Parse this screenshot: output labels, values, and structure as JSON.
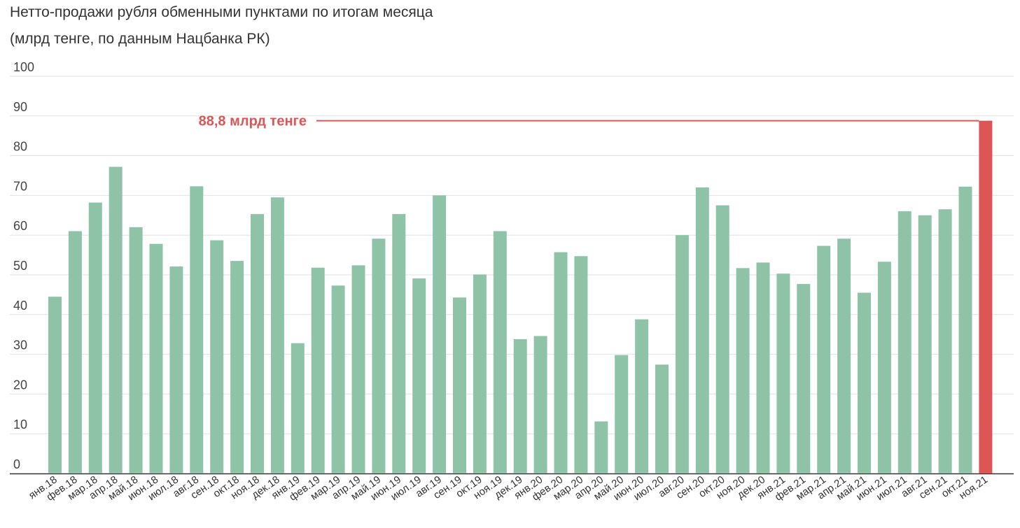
{
  "chart_data": {
    "type": "bar",
    "title_line1": "Нетто-продажи рубля обменными пунктами по итогам месяца",
    "title_line2": "(млрд тенге, по данным Нацбанка РК)",
    "categories": [
      "янв.18",
      "фев.18",
      "мар.18",
      "апр.18",
      "май.18",
      "июн.18",
      "июл.18",
      "авг.18",
      "сен.18",
      "окт.18",
      "ноя.18",
      "дек.18",
      "янв.19",
      "фев.19",
      "мар.19",
      "апр.19",
      "май.19",
      "июн.19",
      "июл.19",
      "авг.19",
      "сен.19",
      "окт.19",
      "ноя.19",
      "дек.19",
      "янв.20",
      "фев.20",
      "мар.20",
      "апр.20",
      "май.20",
      "июн.20",
      "июл.20",
      "авг.20",
      "сен.20",
      "окт.20",
      "ноя.20",
      "дек.20",
      "янв.21",
      "фев.21",
      "мар.21",
      "апр.21",
      "май.21",
      "июн.21",
      "июл.21",
      "авг.21",
      "сен.21",
      "окт.21",
      "ноя.21"
    ],
    "values": [
      44.5,
      61,
      68.2,
      77.2,
      62,
      57.8,
      52.1,
      72.3,
      58.7,
      53.5,
      65.3,
      69.5,
      32.8,
      51.8,
      47.3,
      52.4,
      59.1,
      65.3,
      49.1,
      70,
      44.3,
      50.1,
      61,
      33.8,
      34.6,
      55.7,
      54.7,
      13.1,
      29.8,
      38.8,
      27.4,
      60,
      72,
      67.5,
      51.7,
      53.1,
      50.3,
      47.7,
      57.3,
      59.1,
      45.5,
      53.3,
      66,
      65,
      66.5,
      72.2,
      88.8
    ],
    "highlight_index": 46,
    "annotation": "88,8 млрд тенге",
    "ylim": [
      0,
      100
    ],
    "yticks": [
      0,
      10,
      20,
      30,
      40,
      50,
      60,
      70,
      80,
      90,
      100
    ],
    "grid": true,
    "colors": {
      "bar": "#8fc3a7",
      "highlight": "#dd5555",
      "grid": "#e2e2e2",
      "axis": "#333333"
    }
  }
}
